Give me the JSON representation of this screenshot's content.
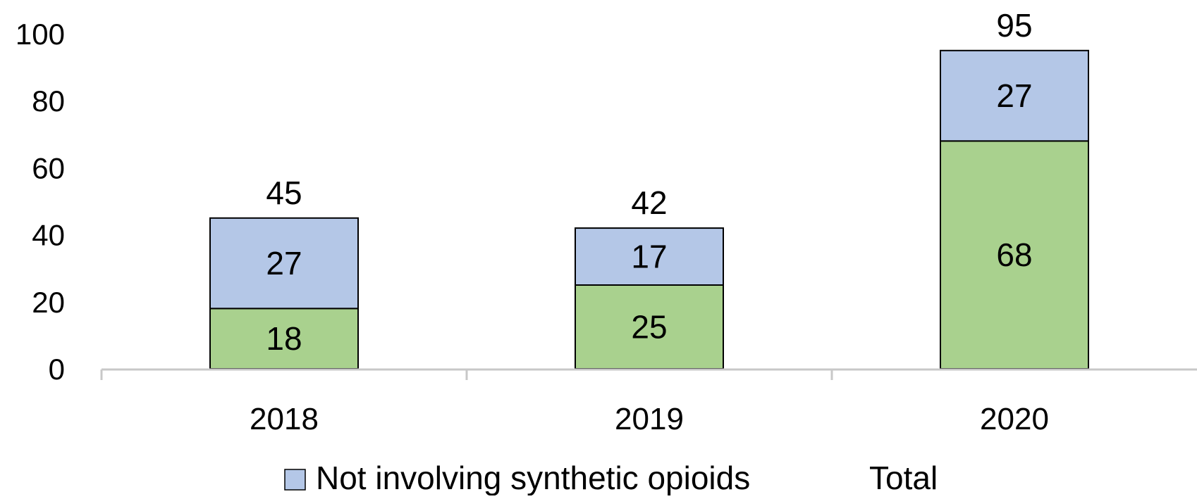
{
  "chart_data": {
    "type": "bar",
    "stacked": true,
    "categories": [
      "2018",
      "2019",
      "2020"
    ],
    "series": [
      {
        "name": "",
        "values": [
          18,
          25,
          68
        ],
        "color": "#a9d18e"
      },
      {
        "name": "Not involving synthetic opioids",
        "values": [
          27,
          17,
          27
        ],
        "color": "#b4c7e7"
      }
    ],
    "totals": {
      "name": "Total",
      "values": [
        45,
        42,
        95
      ]
    },
    "y_ticks": [
      "0",
      "20",
      "40",
      "60",
      "80",
      "100"
    ],
    "ylim": [
      0,
      100
    ],
    "legend": [
      "Not involving synthetic opioids",
      "Total"
    ],
    "legend_position": "bottom",
    "grid": false,
    "title": "",
    "xlabel": "",
    "ylabel": ""
  }
}
